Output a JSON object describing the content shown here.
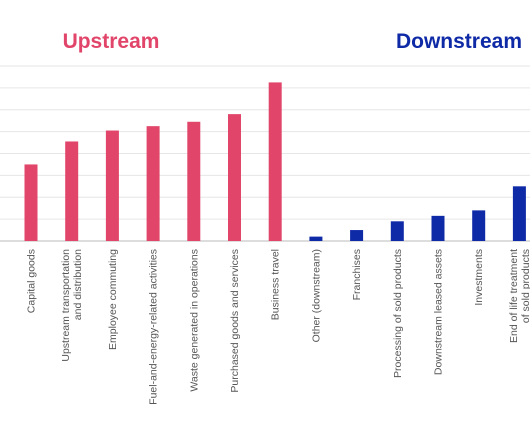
{
  "chart_data": {
    "type": "bar",
    "title": "",
    "xlabel": "",
    "ylabel": "",
    "ylim": [
      0,
      16
    ],
    "grid": true,
    "group_labels": {
      "upstream": "Upstream",
      "downstream": "Downstream"
    },
    "categories": [
      [
        "Capital goods"
      ],
      [
        "Upstream transportation",
        "and distribution"
      ],
      [
        "Employee commuting"
      ],
      [
        "Fuel-and-energy-related activities"
      ],
      [
        "Waste generated in operations"
      ],
      [
        "Purchased goods and services"
      ],
      [
        "Business travel"
      ],
      [
        "Other (downstream)"
      ],
      [
        "Franchises"
      ],
      [
        "Processing of sold products"
      ],
      [
        "Downstream leased assets"
      ],
      [
        "Investments"
      ],
      [
        "End of life treatment",
        "of sold products"
      ]
    ],
    "series": [
      {
        "group": "upstream",
        "values": [
          7.0,
          9.1,
          10.1,
          10.5,
          10.9,
          11.6,
          14.5,
          null,
          null,
          null,
          null,
          null,
          null
        ]
      },
      {
        "group": "downstream",
        "values": [
          null,
          null,
          null,
          null,
          null,
          null,
          null,
          0.4,
          1.0,
          1.8,
          2.3,
          2.8,
          5.0
        ]
      }
    ],
    "colors": {
      "upstream": "#e2456a",
      "downstream": "#0f2aa6",
      "grid": "#e6e6e6",
      "axis": "#bbbbbb"
    }
  }
}
